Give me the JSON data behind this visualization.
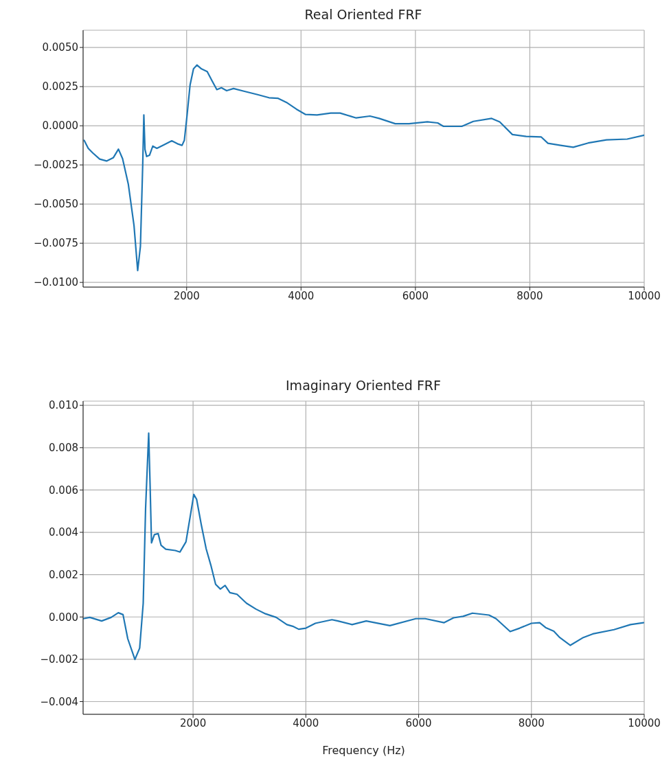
{
  "chart_data": [
    {
      "type": "line",
      "title": "Real Oriented FRF",
      "color": "#1f77b4",
      "grid": true,
      "xlim": [
        190,
        10000
      ],
      "xticks": [
        2000,
        4000,
        6000,
        8000,
        10000
      ],
      "ylim": [
        -0.0103,
        0.0061
      ],
      "yticks": [
        {
          "value": 0.005,
          "label": "0.0050"
        },
        {
          "value": 0.0025,
          "label": "0.0025"
        },
        {
          "value": 0,
          "label": "0.0000"
        },
        {
          "value": -0.0025,
          "label": "−0.0025"
        },
        {
          "value": -0.005,
          "label": "−0.0050"
        },
        {
          "value": -0.0075,
          "label": "−0.0075"
        },
        {
          "value": -0.01,
          "label": "−0.0100"
        }
      ],
      "x": [
        208,
        280,
        360,
        480,
        600,
        720,
        808,
        880,
        980,
        1080,
        1144,
        1192,
        1232,
        1252,
        1272,
        1300,
        1352,
        1408,
        1480,
        1600,
        1740,
        1840,
        1920,
        1960,
        2008,
        2060,
        2120,
        2180,
        2260,
        2360,
        2440,
        2528,
        2608,
        2700,
        2820,
        3000,
        3240,
        3440,
        3600,
        3760,
        3920,
        4080,
        4280,
        4520,
        4683,
        4964,
        5205,
        5365,
        5647,
        5888,
        6209,
        6390,
        6490,
        6811,
        7012,
        7333,
        7474,
        7695,
        7936,
        8197,
        8317,
        8538,
        8759,
        9020,
        9341,
        9703,
        10000
      ],
      "values": [
        -0.00093,
        -0.00144,
        -0.00174,
        -0.00213,
        -0.00225,
        -0.00203,
        -0.00149,
        -0.0021,
        -0.00372,
        -0.00637,
        -0.00924,
        -0.0077,
        -0.00254,
        0.00069,
        -0.00151,
        -0.00196,
        -0.00188,
        -0.0013,
        -0.00144,
        -0.00122,
        -0.00096,
        -0.00115,
        -0.00125,
        -0.00093,
        0.00069,
        0.0026,
        0.00363,
        0.00388,
        0.00363,
        0.00346,
        0.0029,
        0.00231,
        0.00243,
        0.00224,
        0.00238,
        0.00221,
        0.00199,
        0.00179,
        0.00175,
        0.00146,
        0.00106,
        0.00072,
        0.00069,
        0.00081,
        0.00081,
        0.0005,
        0.00062,
        0.00047,
        0.00013,
        0.00013,
        0.00025,
        0.00018,
        -4e-05,
        -4e-05,
        0.00028,
        0.00047,
        0.00025,
        -0.00056,
        -0.00068,
        -0.00071,
        -0.00112,
        -0.00125,
        -0.00137,
        -0.0011,
        -0.0009,
        -0.00085,
        -0.0006
      ]
    },
    {
      "type": "line",
      "title": "Imaginary Oriented FRF",
      "xlabel": "Frequency (Hz)",
      "color": "#1f77b4",
      "grid": true,
      "xlim": [
        50,
        10000
      ],
      "xticks": [
        2000,
        4000,
        6000,
        8000,
        10000
      ],
      "ylim": [
        -0.0046,
        0.0102
      ],
      "yticks": [
        {
          "value": 0.01,
          "label": "0.010"
        },
        {
          "value": 0.008,
          "label": "0.008"
        },
        {
          "value": 0.006,
          "label": "0.006"
        },
        {
          "value": 0.004,
          "label": "0.004"
        },
        {
          "value": 0.002,
          "label": "0.002"
        },
        {
          "value": 0,
          "label": "0.000"
        },
        {
          "value": -0.002,
          "label": "−0.002"
        },
        {
          "value": -0.004,
          "label": "−0.004"
        }
      ],
      "x": [
        51,
        169,
        379,
        548,
        674,
        758,
        842,
        969,
        1053,
        1116,
        1158,
        1213,
        1238,
        1263,
        1314,
        1381,
        1432,
        1516,
        1684,
        1768,
        1874,
        1958,
        2013,
        2063,
        2147,
        2232,
        2316,
        2400,
        2484,
        2568,
        2653,
        2779,
        2947,
        3116,
        3284,
        3474,
        3663,
        3768,
        3873,
        4000,
        4168,
        4463,
        4569,
        4820,
        5071,
        5490,
        5950,
        6117,
        6452,
        6619,
        6787,
        6954,
        7247,
        7372,
        7623,
        7791,
        8000,
        8146,
        8251,
        8397,
        8502,
        8690,
        8920,
        9088,
        9464,
        9757,
        9987
      ],
      "values": [
        -8e-05,
        -2e-05,
        -0.00019,
        -2e-05,
        0.0002,
        0.00011,
        -0.00103,
        -0.00201,
        -0.00147,
        0.00065,
        0.00512,
        0.00869,
        0.00623,
        0.0035,
        0.00389,
        0.00394,
        0.00339,
        0.0032,
        0.00314,
        0.00307,
        0.00355,
        0.00489,
        0.00579,
        0.00556,
        0.00434,
        0.00322,
        0.00244,
        0.00154,
        0.00132,
        0.00149,
        0.00115,
        0.00107,
        0.00065,
        0.00037,
        0.00015,
        -2e-05,
        -0.00036,
        -0.00044,
        -0.00058,
        -0.00053,
        -0.0003,
        -0.00013,
        -0.00019,
        -0.00036,
        -0.00019,
        -0.00041,
        -8e-05,
        -8e-05,
        -0.00027,
        -4e-05,
        3e-05,
        0.00018,
        9e-05,
        -8e-05,
        -0.00069,
        -0.00053,
        -0.0003,
        -0.00027,
        -0.0005,
        -0.00067,
        -0.00097,
        -0.00134,
        -0.00097,
        -0.0008,
        -0.0006,
        -0.00036,
        -0.00027
      ]
    }
  ]
}
